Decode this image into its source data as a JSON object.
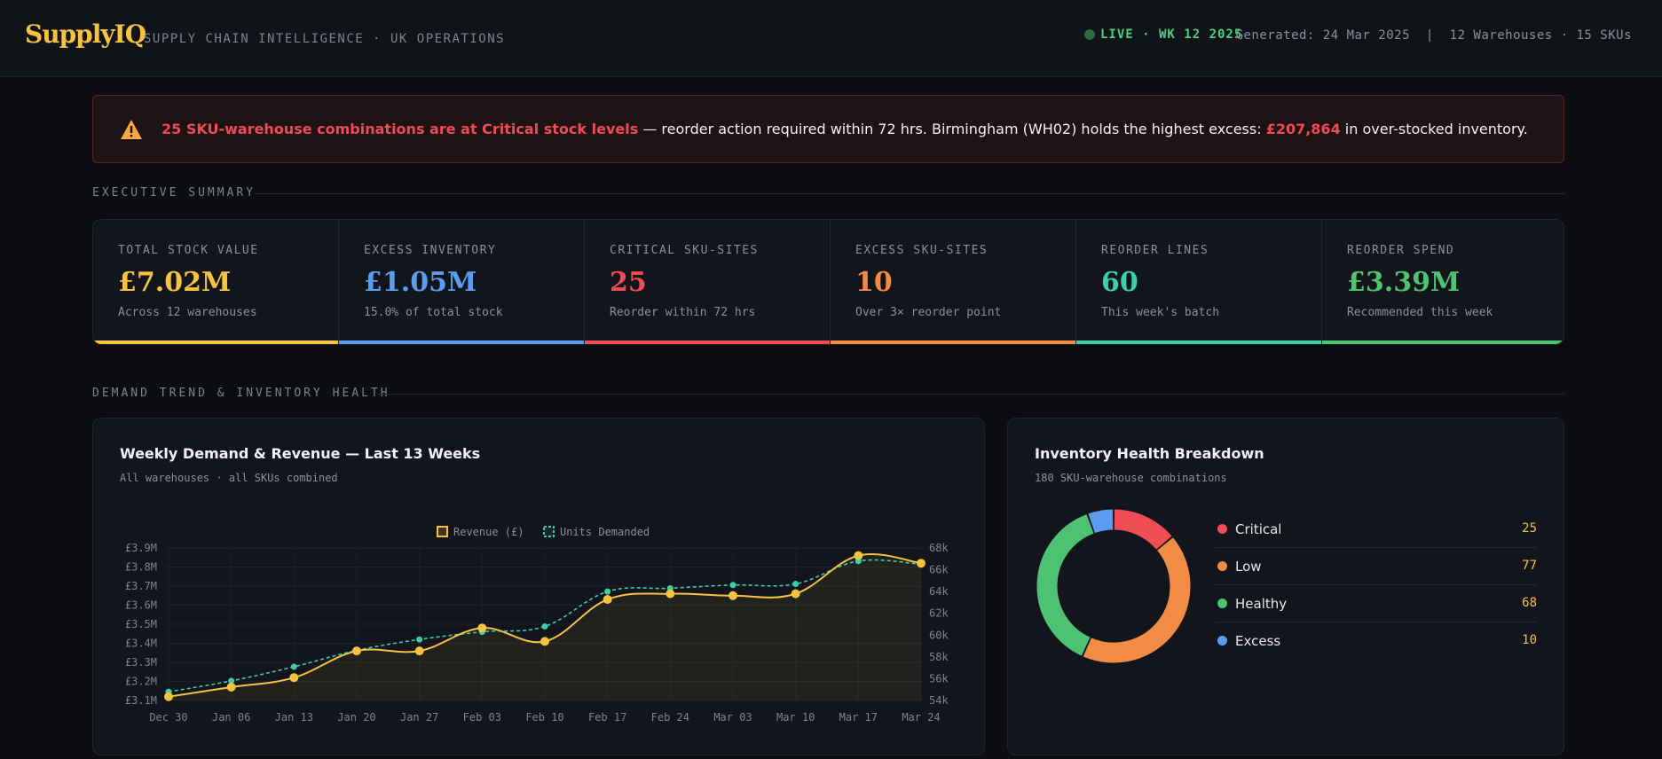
{
  "header": {
    "brand": "SupplyIQ",
    "tagline": "SUPPLY CHAIN INTELLIGENCE · UK OPERATIONS",
    "live": "LIVE · WK 12 2025",
    "meta": "Generated: 24 Mar 2025  |  12 Warehouses · 15 SKUs"
  },
  "alert": {
    "headline": "25 SKU-warehouse combinations are at Critical stock levels",
    "text1": " — reorder action required within 72 hrs. Birmingham (WH02) holds the highest excess: ",
    "amount": "£207,864",
    "text2": " in over-stocked inventory."
  },
  "sections": {
    "summary": "EXECUTIVE SUMMARY",
    "trend": "DEMAND TREND & INVENTORY HEALTH"
  },
  "kpis": [
    {
      "label": "TOTAL STOCK VALUE",
      "value": "£7.02M",
      "sub": "Across 12 warehouses",
      "color": "#f5c242"
    },
    {
      "label": "EXCESS INVENTORY",
      "value": "£1.05M",
      "sub": "15.0% of total stock",
      "color": "#5b9cf0"
    },
    {
      "label": "CRITICAL SKU-SITES",
      "value": "25",
      "sub": "Reorder within 72 hrs",
      "color": "#ef4c55"
    },
    {
      "label": "EXCESS SKU-SITES",
      "value": "10",
      "sub": "Over 3× reorder point",
      "color": "#f28c44"
    },
    {
      "label": "REORDER LINES",
      "value": "60",
      "sub": "This week's batch",
      "color": "#3ecfa6"
    },
    {
      "label": "REORDER SPEND",
      "value": "£3.39M",
      "sub": "Recommended this week",
      "color": "#4cc272"
    }
  ],
  "trend_panel": {
    "title": "Weekly Demand & Revenue — Last 13 Weeks",
    "subtitle": "All warehouses · all SKUs combined"
  },
  "health_panel": {
    "title": "Inventory Health Breakdown",
    "subtitle": "180 SKU-warehouse combinations"
  },
  "chart_data": [
    {
      "type": "line",
      "categories": [
        "Dec 30",
        "Jan 06",
        "Jan 13",
        "Jan 20",
        "Jan 27",
        "Feb 03",
        "Feb 10",
        "Feb 17",
        "Feb 24",
        "Mar 03",
        "Mar 10",
        "Mar 17",
        "Mar 24"
      ],
      "series": [
        {
          "name": "Revenue (£)",
          "axis": "left",
          "color": "#f5c242",
          "values": [
            3.12,
            3.17,
            3.22,
            3.36,
            3.36,
            3.48,
            3.41,
            3.63,
            3.66,
            3.65,
            3.66,
            3.86,
            3.82
          ]
        },
        {
          "name": "Units Demanded",
          "axis": "right",
          "color": "#3ecfa6",
          "dashed": true,
          "values": [
            54800,
            55800,
            57100,
            58600,
            59600,
            60300,
            60800,
            64000,
            64300,
            64600,
            64700,
            66800,
            66500
          ]
        }
      ],
      "yleft": {
        "min": 3.1,
        "max": 3.9,
        "ticks": [
          "£3.9M",
          "£3.8M",
          "£3.7M",
          "£3.6M",
          "£3.5M",
          "£3.4M",
          "£3.3M",
          "£3.2M",
          "£3.1M"
        ]
      },
      "yright": {
        "min": 54000,
        "max": 68000,
        "ticks": [
          "68k",
          "66k",
          "64k",
          "62k",
          "60k",
          "58k",
          "56k",
          "54k"
        ]
      },
      "grid": true,
      "legend": "top"
    },
    {
      "type": "pie",
      "donut": true,
      "slices": [
        {
          "label": "Critical",
          "value": 25,
          "color": "#ef4c55"
        },
        {
          "label": "Low",
          "value": 77,
          "color": "#f28c44"
        },
        {
          "label": "Healthy",
          "value": 68,
          "color": "#4cc272"
        },
        {
          "label": "Excess",
          "value": 10,
          "color": "#5b9cf0"
        }
      ]
    }
  ]
}
